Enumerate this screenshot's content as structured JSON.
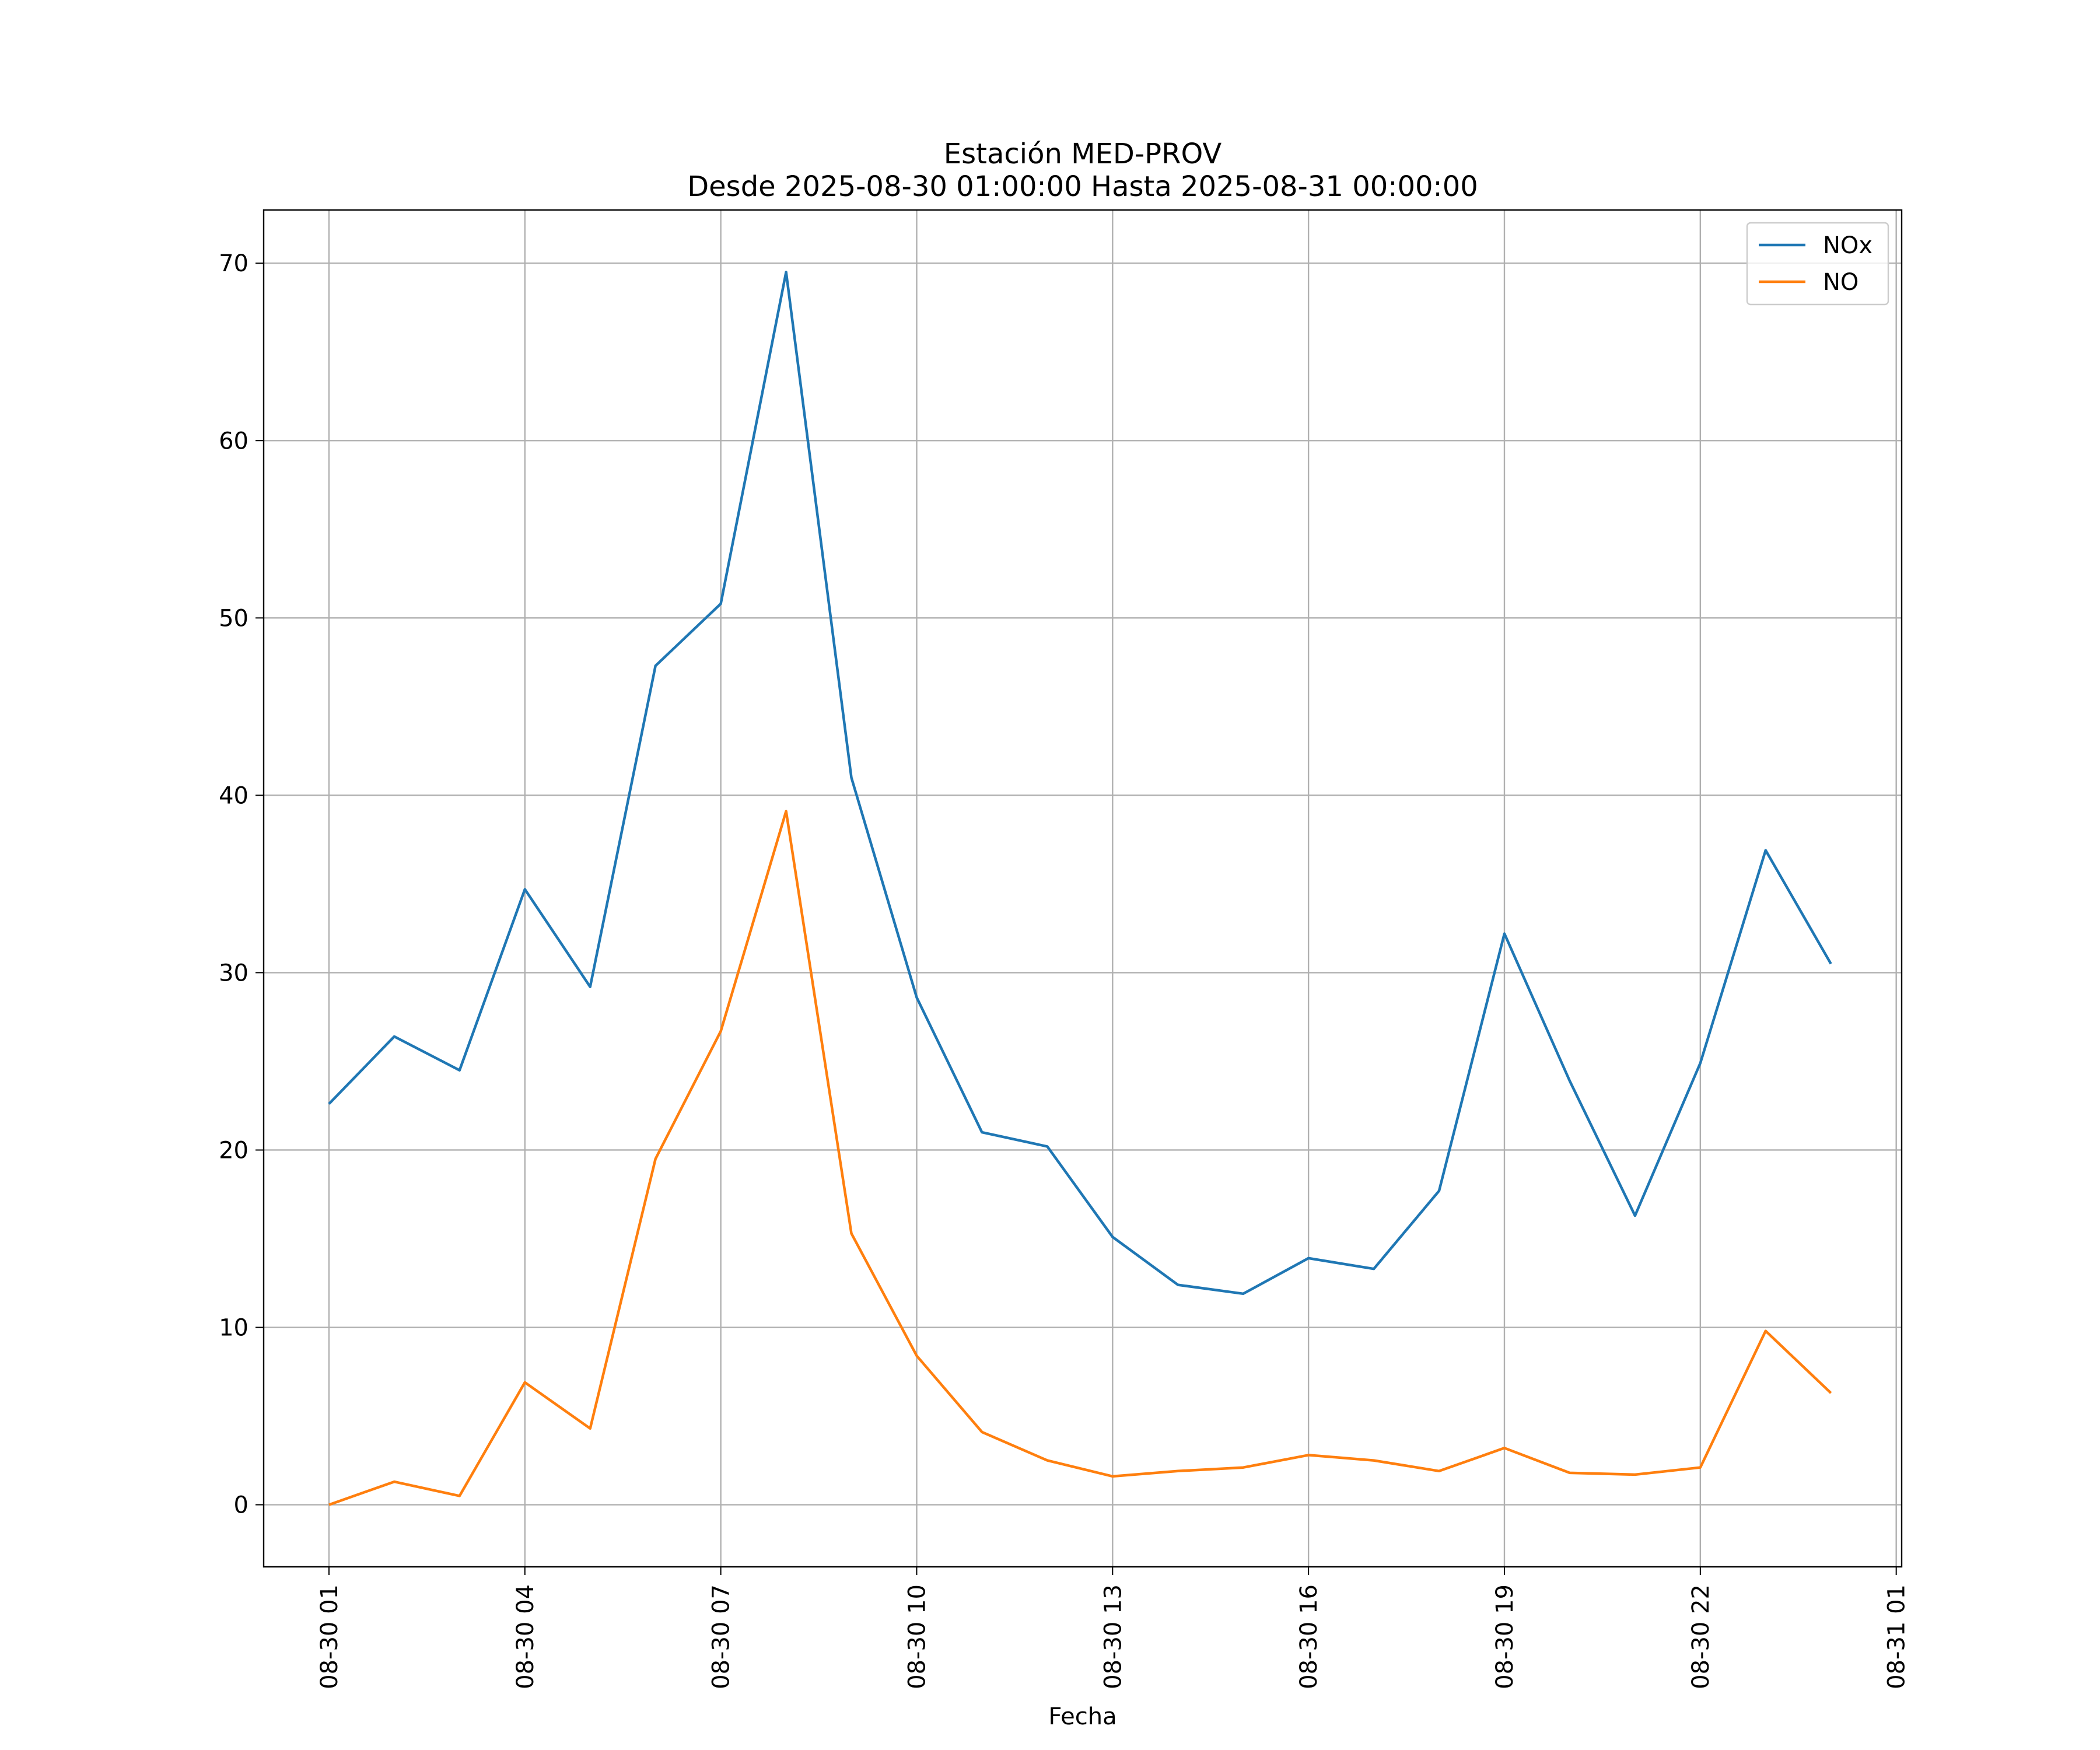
{
  "chart_data": {
    "type": "line",
    "title": "Estación MED-PROV",
    "subtitle": "Desde 2025-08-30 01:00:00 Hasta 2025-08-31 00:00:00",
    "xlabel": "Fecha",
    "ylabel": "",
    "x": [
      "2025-08-30 01:00",
      "2025-08-30 02:00",
      "2025-08-30 03:00",
      "2025-08-30 04:00",
      "2025-08-30 05:00",
      "2025-08-30 06:00",
      "2025-08-30 07:00",
      "2025-08-30 08:00",
      "2025-08-30 09:00",
      "2025-08-30 10:00",
      "2025-08-30 11:00",
      "2025-08-30 12:00",
      "2025-08-30 13:00",
      "2025-08-30 14:00",
      "2025-08-30 15:00",
      "2025-08-30 16:00",
      "2025-08-30 17:00",
      "2025-08-30 18:00",
      "2025-08-30 19:00",
      "2025-08-30 20:00",
      "2025-08-30 21:00",
      "2025-08-30 22:00",
      "2025-08-30 23:00",
      "2025-08-31 00:00"
    ],
    "xlim": [
      "2025-08-30 00:00",
      "2025-08-31 01:05"
    ],
    "x_ticks": [
      "2025-08-30 01:00",
      "2025-08-30 04:00",
      "2025-08-30 07:00",
      "2025-08-30 10:00",
      "2025-08-30 13:00",
      "2025-08-30 16:00",
      "2025-08-30 19:00",
      "2025-08-30 22:00",
      "2025-08-31 01:00"
    ],
    "x_tick_labels": [
      "08-30 01",
      "08-30 04",
      "08-30 07",
      "08-30 10",
      "08-30 13",
      "08-30 16",
      "08-30 19",
      "08-30 22",
      "08-31 01"
    ],
    "ylim": [
      -3.5,
      73
    ],
    "y_ticks": [
      0,
      10,
      20,
      30,
      40,
      50,
      60,
      70
    ],
    "y_tick_labels": [
      "0",
      "10",
      "20",
      "30",
      "40",
      "50",
      "60",
      "70"
    ],
    "grid": true,
    "legend_position": "top-right",
    "series": [
      {
        "name": "NOx",
        "color": "#1f77b4",
        "values": [
          22.6,
          26.4,
          24.5,
          34.7,
          29.2,
          47.3,
          50.8,
          69.5,
          41.0,
          28.6,
          21.0,
          20.2,
          15.1,
          12.4,
          11.9,
          13.9,
          13.3,
          17.7,
          32.2,
          23.9,
          16.3,
          24.9,
          36.9,
          30.5
        ]
      },
      {
        "name": "NO",
        "color": "#ff7f0e",
        "values": [
          0.0,
          1.3,
          0.5,
          6.9,
          4.3,
          19.5,
          26.7,
          39.1,
          15.3,
          8.4,
          4.1,
          2.5,
          1.6,
          1.9,
          2.1,
          2.8,
          2.5,
          1.9,
          3.2,
          1.8,
          1.7,
          2.1,
          9.8,
          6.3
        ]
      }
    ]
  }
}
